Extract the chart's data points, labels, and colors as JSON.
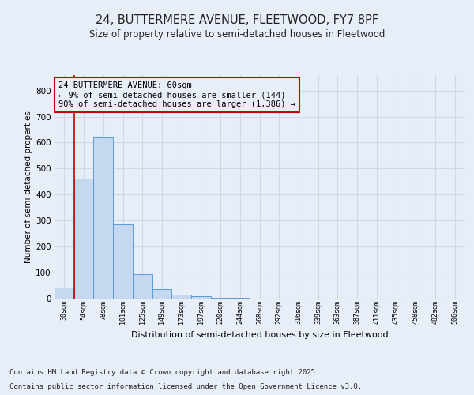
{
  "title1": "24, BUTTERMERE AVENUE, FLEETWOOD, FY7 8PF",
  "title2": "Size of property relative to semi-detached houses in Fleetwood",
  "xlabel": "Distribution of semi-detached houses by size in Fleetwood",
  "ylabel": "Number of semi-detached properties",
  "categories": [
    "30sqm",
    "54sqm",
    "78sqm",
    "101sqm",
    "125sqm",
    "149sqm",
    "173sqm",
    "197sqm",
    "220sqm",
    "244sqm",
    "268sqm",
    "292sqm",
    "316sqm",
    "339sqm",
    "363sqm",
    "387sqm",
    "411sqm",
    "435sqm",
    "458sqm",
    "482sqm",
    "506sqm"
  ],
  "values": [
    40,
    460,
    620,
    285,
    92,
    35,
    14,
    8,
    3,
    1,
    0,
    0,
    0,
    0,
    0,
    0,
    0,
    0,
    0,
    0,
    0
  ],
  "bar_color": "#c5d8f0",
  "bar_edge_color": "#5b9bd5",
  "grid_color": "#d0d8e8",
  "annotation_text": "24 BUTTERMERE AVENUE: 60sqm\n← 9% of semi-detached houses are smaller (144)\n90% of semi-detached houses are larger (1,386) →",
  "vline_color": "#cc0000",
  "vline_pos": 0.5,
  "annotation_box_edgecolor": "#cc0000",
  "footer1": "Contains HM Land Registry data © Crown copyright and database right 2025.",
  "footer2": "Contains public sector information licensed under the Open Government Licence v3.0.",
  "ylim": [
    0,
    860
  ],
  "yticks": [
    0,
    100,
    200,
    300,
    400,
    500,
    600,
    700,
    800
  ],
  "fig_bg": "#e8eef8",
  "ax_bg": "#e8eef8"
}
